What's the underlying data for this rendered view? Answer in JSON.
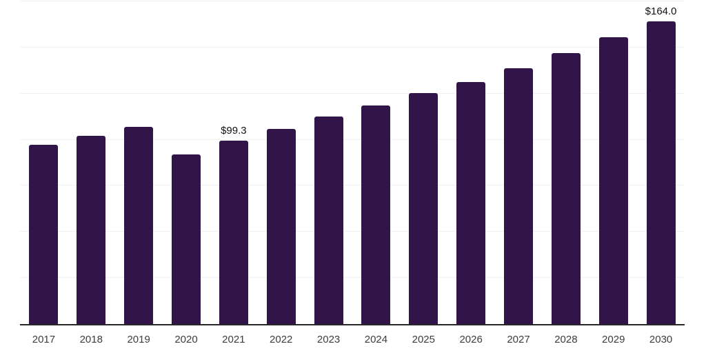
{
  "chart_data": {
    "type": "bar",
    "title": "",
    "xlabel": "",
    "ylabel": "",
    "categories": [
      "2017",
      "2018",
      "2019",
      "2020",
      "2021",
      "2022",
      "2023",
      "2024",
      "2025",
      "2026",
      "2027",
      "2028",
      "2029",
      "2030"
    ],
    "values": [
      97.4,
      102.2,
      107.0,
      92.0,
      99.3,
      105.9,
      112.5,
      118.5,
      125.1,
      131.4,
      138.9,
      146.8,
      155.4,
      164.0
    ],
    "data_labels": [
      "",
      "",
      "",
      "",
      "$99.3",
      "",
      "",
      "",
      "",
      "",
      "",
      "",
      "",
      "$164.0"
    ],
    "ylim": [
      0,
      175
    ],
    "grid_step": 25,
    "grid": true,
    "legend_position": "none",
    "bar_color": "#321548",
    "grid_color": "#f1f1f1",
    "axis_line_color": "#262626",
    "value_label_color": "#111111",
    "tick_label_color": "#3c3c3c"
  }
}
